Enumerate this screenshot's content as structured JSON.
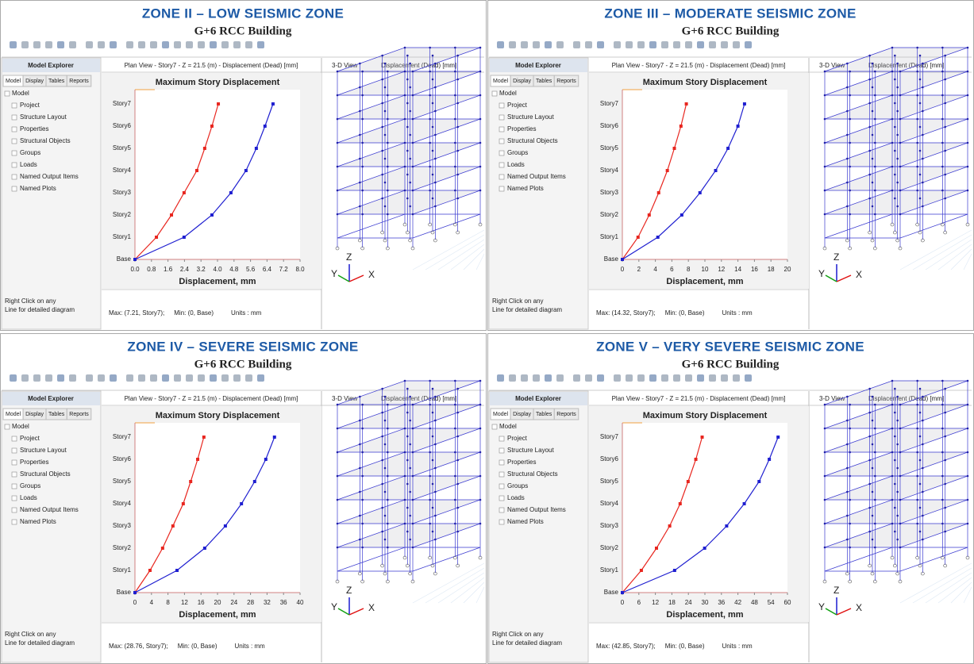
{
  "panels": [
    {
      "title": "ZONE II – LOW SEISMIC ZONE",
      "subtitle": "G+6 RCC Building",
      "explorer": {
        "title": "Model Explorer",
        "tabs": [
          "Model",
          "Display",
          "Tables",
          "Reports"
        ],
        "root": "Model",
        "items": [
          "Project",
          "Structure Layout",
          "Properties",
          "Structural Objects",
          "Groups",
          "Loads",
          "Named Output Items",
          "Named Plots"
        ],
        "hint": [
          "Right Click on any",
          "Line for detailed diagram"
        ]
      },
      "plan_view": {
        "title": "Plan View - Story7 - Z = 21.5 (m) - Displacement (Dead) [mm]",
        "status": {
          "max": "Max: (7.21, Story7);",
          "min": "Min: (0, Base)",
          "units": "Units : mm"
        }
      },
      "view3d": {
        "title": "3-D View",
        "subtitle": "Displacement (Dead) [mm]",
        "axes": [
          "X",
          "Y",
          "Z"
        ]
      },
      "chart": {
        "type": "line",
        "title": "Maximum Story Displacement",
        "x_label": "Displacement, mm",
        "categories": [
          "Base",
          "Story1",
          "Story2",
          "Story3",
          "Story4",
          "Story5",
          "Story6",
          "Story7"
        ],
        "xlim": [
          0,
          8
        ],
        "xticks": [
          {
            "value": 0,
            "label": "0.0"
          },
          0.8,
          1.6,
          2.4,
          3.2,
          {
            "value": 4,
            "label": "4.0"
          },
          4.8,
          5.6,
          6.4,
          7.2,
          {
            "value": 8,
            "label": "8.0"
          }
        ],
        "series": [
          {
            "color": "#e8261f",
            "values": [
              0,
              1.04,
              1.77,
              2.38,
              3.0,
              3.38,
              3.73,
              4.04
            ]
          },
          {
            "color": "#1f1fd0",
            "values": [
              0,
              2.38,
              3.73,
              4.65,
              5.38,
              5.88,
              6.3,
              6.69
            ]
          }
        ]
      }
    },
    {
      "title": "ZONE III – MODERATE SEISMIC ZONE",
      "subtitle": "G+6 RCC Building",
      "explorer": {
        "title": "Model Explorer",
        "tabs": [
          "Model",
          "Display",
          "Tables",
          "Reports"
        ],
        "root": "Model",
        "items": [
          "Project",
          "Structure Layout",
          "Properties",
          "Structural Objects",
          "Groups",
          "Loads",
          "Named Output Items",
          "Named Plots"
        ],
        "hint": [
          "Right Click on any",
          "Line for detailed diagram"
        ]
      },
      "plan_view": {
        "title": "Plan View - Story7 - Z = 21.5 (m) - Displacement (Dead) [mm]",
        "status": {
          "max": "Max: (14.32, Story7);",
          "min": "Min: (0, Base)",
          "units": "Units : mm"
        }
      },
      "view3d": {
        "title": "3-D View",
        "subtitle": "Displacement (Dead) [mm]",
        "axes": [
          "X",
          "Y",
          "Z"
        ]
      },
      "chart": {
        "type": "line",
        "title": "Maximum Story Displacement",
        "x_label": "Displacement, mm",
        "categories": [
          "Base",
          "Story1",
          "Story2",
          "Story3",
          "Story4",
          "Story5",
          "Story6",
          "Story7"
        ],
        "xlim": [
          0,
          20
        ],
        "xticks": [
          0,
          2,
          4,
          6,
          8,
          10,
          12,
          14,
          16,
          18,
          20
        ],
        "series": [
          {
            "color": "#e8261f",
            "values": [
              0,
              1.9,
              3.25,
              4.4,
              5.45,
              6.3,
              7.1,
              7.75
            ]
          },
          {
            "color": "#1f1fd0",
            "values": [
              0,
              4.3,
              7.2,
              9.4,
              11.3,
              12.8,
              14.0,
              14.8
            ]
          }
        ]
      }
    },
    {
      "title": "ZONE IV – SEVERE SEISMIC ZONE",
      "subtitle": "G+6 RCC Building",
      "explorer": {
        "title": "Model Explorer",
        "tabs": [
          "Model",
          "Display",
          "Tables",
          "Reports"
        ],
        "root": "Model",
        "items": [
          "Project",
          "Structure Layout",
          "Properties",
          "Structural Objects",
          "Groups",
          "Loads",
          "Named Output Items",
          "Named Plots"
        ],
        "hint": [
          "Right Click on any",
          "Line for detailed diagram"
        ]
      },
      "plan_view": {
        "title": "Plan View - Story7 - Z = 21.5 (m) - Displacement (Dead) [mm]",
        "status": {
          "max": "Max: (28.76, Story7);",
          "min": "Min: (0, Base)",
          "units": "Units : mm"
        }
      },
      "view3d": {
        "title": "3-D View",
        "subtitle": "Displacement (Dead) [mm]",
        "axes": [
          "X",
          "Y",
          "Z"
        ]
      },
      "chart": {
        "type": "line",
        "title": "Maximum Story Displacement",
        "x_label": "Displacement, mm",
        "categories": [
          "Base",
          "Story1",
          "Story2",
          "Story3",
          "Story4",
          "Story5",
          "Story6",
          "Story7"
        ],
        "xlim": [
          0,
          40
        ],
        "xticks": [
          0,
          4,
          8,
          12,
          16,
          20,
          24,
          28,
          32,
          36,
          40
        ],
        "series": [
          {
            "color": "#e8261f",
            "values": [
              0,
              3.65,
              6.7,
              9.2,
              11.7,
              13.5,
              15.2,
              16.7
            ]
          },
          {
            "color": "#1f1fd0",
            "values": [
              0,
              10.2,
              16.9,
              21.9,
              25.8,
              29.0,
              31.7,
              33.8
            ]
          }
        ]
      }
    },
    {
      "title": "ZONE V – VERY SEVERE SEISMIC ZONE",
      "subtitle": "G+6 RCC Building",
      "explorer": {
        "title": "Model Explorer",
        "tabs": [
          "Model",
          "Display",
          "Tables",
          "Reports"
        ],
        "root": "Model",
        "items": [
          "Project",
          "Structure Layout",
          "Properties",
          "Structural Objects",
          "Groups",
          "Loads",
          "Named Output Items",
          "Named Plots"
        ],
        "hint": [
          "Right Click on any",
          "Line for detailed diagram"
        ]
      },
      "plan_view": {
        "title": "Plan View - Story7 - Z = 21.5 (m) - Displacement (Dead) [mm]",
        "status": {
          "max": "Max: (42.85, Story7);",
          "min": "Min: (0, Base)",
          "units": "Units : mm"
        }
      },
      "view3d": {
        "title": "3-D View",
        "subtitle": "Displacement (Dead) [mm]",
        "axes": [
          "X",
          "Y",
          "Z"
        ]
      },
      "chart": {
        "type": "line",
        "title": "Maximum Story Displacement",
        "x_label": "Displacement, mm",
        "categories": [
          "Base",
          "Story1",
          "Story2",
          "Story3",
          "Story4",
          "Story5",
          "Story6",
          "Story7"
        ],
        "xlim": [
          0,
          60
        ],
        "xticks": [
          0,
          6,
          12,
          18,
          24,
          30,
          36,
          42,
          48,
          54,
          60
        ],
        "series": [
          {
            "color": "#e8261f",
            "values": [
              0,
              6.9,
              12.4,
              17.2,
              21,
              23.9,
              26.7,
              29
            ]
          },
          {
            "color": "#1f1fd0",
            "values": [
              0,
              19,
              29.9,
              37.9,
              44.3,
              49.7,
              53.4,
              56.6
            ]
          }
        ]
      }
    }
  ]
}
